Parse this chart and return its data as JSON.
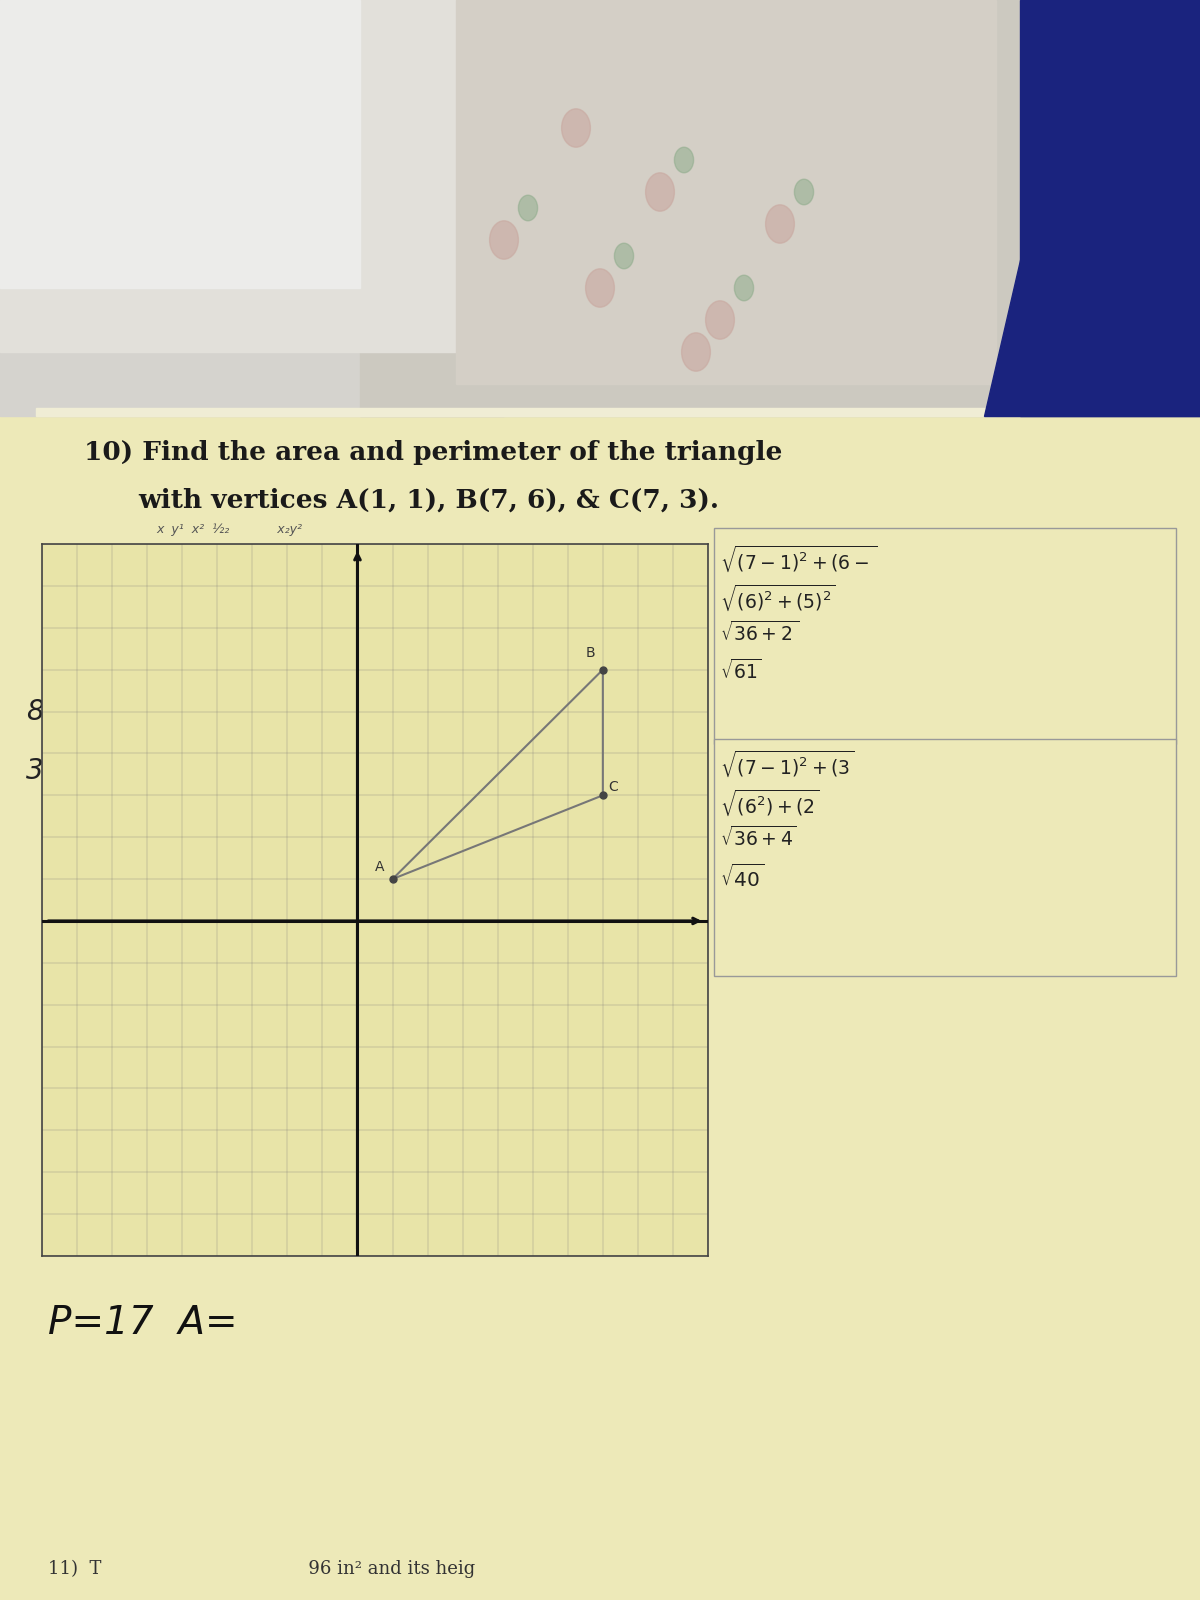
{
  "title_line1": "10) Find the area and perimeter of the triangle",
  "title_line2": "with vertices A(1, 1), B(7, 6), & C(7, 3).",
  "vertices": {
    "A": [
      1,
      1
    ],
    "B": [
      7,
      6
    ],
    "C": [
      7,
      3
    ]
  },
  "grid_xlim": [
    -9,
    10
  ],
  "grid_ylim": [
    -8,
    9
  ],
  "bg_color": "#ede9b8",
  "paper_color": "#e8e4a8",
  "grid_color": "#777777",
  "axis_color": "#111111",
  "triangle_color": "#777777",
  "point_color": "#444444",
  "top_bg_left_color": "#c8c5b8",
  "top_bg_right_color": "#b8b4a8",
  "fur_color": "#dddbd5",
  "floral_color": "#ccc9be",
  "blue_color": "#1a237e"
}
